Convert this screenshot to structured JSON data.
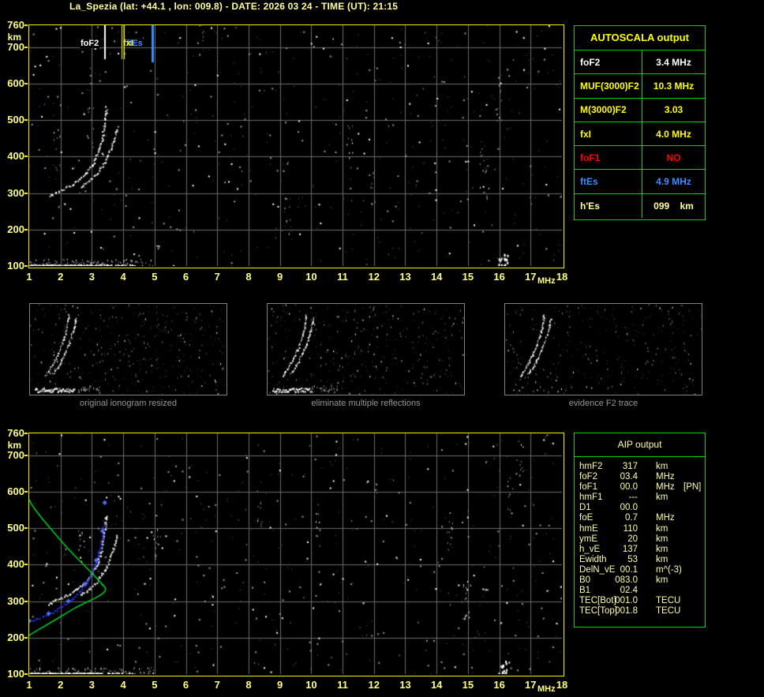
{
  "header": {
    "title": "La_Spezia (lat: +44.1 , lon: 009.8) - DATE: 2026 03 24 - TIME (UT): 21:15"
  },
  "colors": {
    "background": "#000000",
    "plot_border": "#f0f000",
    "grid": "#6b6b6b",
    "axis_text": "#ffff87",
    "table_border": "#00d900",
    "autoscala_title": "#ffff00",
    "aip_text": "#ffffaa",
    "caption_text": "#989898",
    "foF2_line": "#ffffff",
    "fxI_line": "#ffff00",
    "ftEs_line": "#3f8cff",
    "green_profile": "#00cc22",
    "blue_trace": "#2438f0",
    "blue_marker": "#5668ff"
  },
  "axes": {
    "x_unit": "MHz",
    "y_unit": "km",
    "x_ticks": [
      1,
      2,
      3,
      4,
      5,
      6,
      7,
      8,
      9,
      10,
      11,
      12,
      13,
      14,
      15,
      16,
      17,
      18
    ],
    "y_ticks": [
      760,
      700,
      600,
      500,
      400,
      300,
      200,
      100
    ],
    "xlim": [
      1,
      18
    ],
    "ylim": [
      100,
      760
    ]
  },
  "chart_data": [
    {
      "type": "scatter",
      "name": "main-ionogram",
      "xlabel": "MHz",
      "ylabel": "km",
      "xlim": [
        1,
        18
      ],
      "ylim": [
        100,
        760
      ],
      "seed": 7,
      "noise": 560,
      "streaks": 9,
      "o_trace": [
        [
          1.62,
          293
        ],
        [
          1.8,
          301
        ],
        [
          2.0,
          309
        ],
        [
          2.2,
          318
        ],
        [
          2.45,
          330
        ],
        [
          2.65,
          343
        ],
        [
          2.85,
          360
        ],
        [
          3.0,
          378
        ],
        [
          3.12,
          398
        ],
        [
          3.22,
          420
        ],
        [
          3.3,
          445
        ],
        [
          3.36,
          472
        ],
        [
          3.4,
          500
        ],
        [
          3.43,
          524
        ],
        [
          3.45,
          540
        ]
      ],
      "x_trace": [
        [
          2.62,
          318
        ],
        [
          2.8,
          329
        ],
        [
          3.0,
          343
        ],
        [
          3.2,
          361
        ],
        [
          3.38,
          383
        ],
        [
          3.52,
          408
        ],
        [
          3.64,
          434
        ],
        [
          3.74,
          461
        ],
        [
          3.81,
          486
        ]
      ],
      "es_layer": {
        "f0": 1.0,
        "f1": 4.4,
        "h": 102,
        "dense_to": 3.3
      },
      "bright_spots": [
        [
          16.05,
          112
        ],
        [
          16.2,
          122
        ]
      ],
      "markers": [
        {
          "label": "foF2",
          "f": 3.4,
          "color": "#ffffff",
          "w": 2,
          "len": 43,
          "offsets": [
            0
          ]
        },
        {
          "label": "fxI",
          "f": 4.0,
          "color": "#ffff00",
          "w": 1,
          "len": 43,
          "offsets": [
            -2,
            1
          ]
        },
        {
          "label": "ftEs",
          "f": 4.9,
          "color": "#3f8cff",
          "w": 3,
          "len": 47,
          "offsets": [
            0
          ]
        }
      ]
    },
    {
      "type": "scatter",
      "name": "profile-ionogram",
      "xlabel": "MHz",
      "ylabel": "km",
      "xlim": [
        1,
        18
      ],
      "ylim": [
        100,
        760
      ],
      "seed": 13,
      "noise": 560,
      "streaks": 9,
      "o_trace": [
        [
          1.62,
          293
        ],
        [
          1.8,
          301
        ],
        [
          2.0,
          309
        ],
        [
          2.2,
          318
        ],
        [
          2.45,
          330
        ],
        [
          2.65,
          343
        ],
        [
          2.85,
          360
        ],
        [
          3.0,
          378
        ],
        [
          3.12,
          398
        ],
        [
          3.22,
          420
        ],
        [
          3.3,
          445
        ],
        [
          3.36,
          472
        ],
        [
          3.4,
          500
        ],
        [
          3.43,
          524
        ],
        [
          3.45,
          540
        ]
      ],
      "x_trace": [
        [
          2.62,
          318
        ],
        [
          2.8,
          329
        ],
        [
          3.0,
          343
        ],
        [
          3.2,
          361
        ],
        [
          3.38,
          383
        ],
        [
          3.52,
          408
        ],
        [
          3.64,
          434
        ],
        [
          3.74,
          461
        ],
        [
          3.81,
          486
        ]
      ],
      "es_layer": {
        "f0": 1.0,
        "f1": 4.4,
        "h": 102,
        "dense_to": 3.3
      },
      "bright_spots": [
        [
          16.05,
          110
        ],
        [
          16.15,
          120
        ]
      ],
      "green_profile": [
        [
          1.0,
          578
        ],
        [
          1.08,
          565
        ],
        [
          1.2,
          550
        ],
        [
          1.4,
          528
        ],
        [
          1.65,
          502
        ],
        [
          1.95,
          472
        ],
        [
          2.25,
          443
        ],
        [
          2.55,
          416
        ],
        [
          2.85,
          390
        ],
        [
          3.1,
          368
        ],
        [
          3.28,
          351
        ],
        [
          3.4,
          340
        ],
        [
          3.44,
          334
        ],
        [
          3.42,
          327
        ],
        [
          3.3,
          318
        ],
        [
          3.1,
          308
        ],
        [
          2.8,
          296
        ],
        [
          2.5,
          283
        ],
        [
          2.2,
          268
        ],
        [
          1.9,
          252
        ],
        [
          1.6,
          237
        ],
        [
          1.3,
          222
        ],
        [
          1.05,
          209
        ],
        [
          1.0,
          205
        ]
      ],
      "blue_trace": [
        [
          1.0,
          246
        ],
        [
          1.2,
          252
        ],
        [
          1.4,
          258
        ],
        [
          1.62,
          266
        ],
        [
          1.85,
          276
        ],
        [
          2.05,
          288
        ],
        [
          2.25,
          300
        ],
        [
          2.45,
          315
        ],
        [
          2.62,
          330
        ],
        [
          2.78,
          347
        ],
        [
          2.92,
          366
        ],
        [
          3.04,
          388
        ],
        [
          3.14,
          412
        ],
        [
          3.22,
          438
        ],
        [
          3.29,
          466
        ],
        [
          3.34,
          492
        ],
        [
          3.38,
          514
        ]
      ],
      "blue_isolated": [
        [
          3.41,
          570
        ]
      ],
      "markers": []
    }
  ],
  "autoscala": {
    "title": "AUTOSCALA output",
    "rows": [
      {
        "label": "foF2",
        "value": "3.4 MHz",
        "color": "#ffffff"
      },
      {
        "label": "MUF(3000)F2",
        "value": "10.3 MHz",
        "color": "#ffff00"
      },
      {
        "label": "M(3000)F2",
        "value": "3.03",
        "color": "#ffff00"
      },
      {
        "label": "fxI",
        "value": "4.0 MHz",
        "color": "#ffff00"
      },
      {
        "label": "foF1",
        "value": "NO",
        "color": "#ff0000"
      },
      {
        "label": "ftEs",
        "value": "4.9 MHz",
        "color": "#3f8cff"
      },
      {
        "label": "h'Es",
        "value": "099    km",
        "color": "#ffff99"
      }
    ]
  },
  "aip": {
    "title": "AIP output",
    "rows": [
      {
        "label": "hmF2",
        "value": "317",
        "unit": "km",
        "extra": ""
      },
      {
        "label": "foF2",
        "value": "03.4",
        "unit": "MHz",
        "extra": ""
      },
      {
        "label": "foF1",
        "value": "00.0",
        "unit": "MHz",
        "extra": "[PN]"
      },
      {
        "label": "hmF1",
        "value": "---",
        "unit": "km",
        "extra": ""
      },
      {
        "label": "D1",
        "value": "00.0",
        "unit": "",
        "extra": ""
      },
      {
        "label": "foE",
        "value": "0.7",
        "unit": "MHz",
        "extra": ""
      },
      {
        "label": "hmE",
        "value": "110",
        "unit": "km",
        "extra": ""
      },
      {
        "label": "ymE",
        "value": "20",
        "unit": "km",
        "extra": ""
      },
      {
        "label": "h_vE",
        "value": "137",
        "unit": "km",
        "extra": ""
      },
      {
        "label": "Ewidth",
        "value": "53",
        "unit": "km",
        "extra": ""
      },
      {
        "label": "DelN_vE",
        "value": "00.1",
        "unit": "m^(-3)",
        "extra": ""
      },
      {
        "label": "B0",
        "value": "083.0",
        "unit": "km",
        "extra": ""
      },
      {
        "label": "B1",
        "value": "02.4",
        "unit": "",
        "extra": ""
      },
      {
        "label": "TEC[Bot]",
        "value": "001.0",
        "unit": "TECU",
        "extra": ""
      },
      {
        "label": "TEC[Top]",
        "value": "001.8",
        "unit": "TECU",
        "extra": ""
      }
    ]
  },
  "thumbnails": [
    {
      "caption": "original ionogram resized",
      "seed": 21,
      "noise": 380,
      "es": true
    },
    {
      "caption": "eliminate multiple reflections",
      "seed": 22,
      "noise": 360,
      "es": true
    },
    {
      "caption": "evidence F2 trace",
      "seed": 23,
      "noise": 300,
      "es": false
    }
  ],
  "thumb_traces": {
    "a": [
      [
        19,
        90
      ],
      [
        24,
        83
      ],
      [
        29,
        75
      ],
      [
        34,
        65
      ],
      [
        39,
        54
      ],
      [
        43,
        42
      ],
      [
        46,
        30
      ],
      [
        48,
        19
      ],
      [
        49,
        11
      ]
    ],
    "b": [
      [
        29,
        88
      ],
      [
        34,
        81
      ],
      [
        39,
        72
      ],
      [
        44,
        61
      ],
      [
        49,
        49
      ],
      [
        53,
        37
      ],
      [
        56,
        25
      ],
      [
        58,
        16
      ]
    ]
  }
}
